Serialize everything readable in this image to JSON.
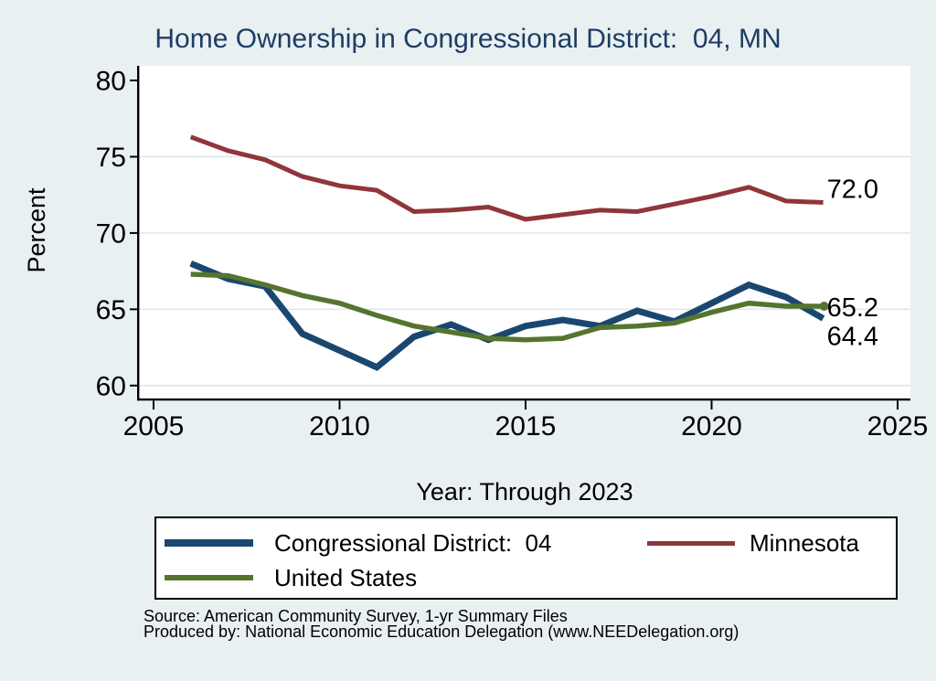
{
  "chart_data": {
    "type": "line",
    "title": "Home Ownership in Congressional District:  04, MN",
    "xlabel": "Year: Through 2023",
    "ylabel": "Percent",
    "x": [
      2006,
      2007,
      2008,
      2009,
      2010,
      2011,
      2012,
      2013,
      2014,
      2015,
      2016,
      2017,
      2018,
      2019,
      2020,
      2021,
      2022,
      2023
    ],
    "series": [
      {
        "name": "Congressional District:  04",
        "color": "#1a476f",
        "line_width": 7,
        "values": [
          68.0,
          67.0,
          66.5,
          63.4,
          62.3,
          61.2,
          63.2,
          64.0,
          63.0,
          63.9,
          64.3,
          63.9,
          64.9,
          64.2,
          65.4,
          66.6,
          65.8,
          64.4
        ]
      },
      {
        "name": "Minnesota",
        "color": "#90353b",
        "line_width": 5,
        "values": [
          76.3,
          75.4,
          74.8,
          73.7,
          73.1,
          72.8,
          71.4,
          71.5,
          71.7,
          70.9,
          71.2,
          71.5,
          71.4,
          71.9,
          72.4,
          73.0,
          72.1,
          72.0
        ]
      },
      {
        "name": "United States",
        "color": "#55752f",
        "line_width": 5.5,
        "end_dot": true,
        "values": [
          67.3,
          67.2,
          66.6,
          65.9,
          65.4,
          64.6,
          63.9,
          63.5,
          63.1,
          63.0,
          63.1,
          63.8,
          63.9,
          64.1,
          64.8,
          65.4,
          65.2,
          65.2
        ]
      }
    ],
    "xticks": [
      2005,
      2010,
      2015,
      2020,
      2025
    ],
    "yticks": [
      60,
      65,
      70,
      75,
      80
    ],
    "ygrid": [
      60,
      65,
      70,
      75
    ],
    "xlim": [
      2004.6,
      2025.35
    ],
    "ylim": [
      59.0,
      80.2
    ],
    "grid": "horizontal",
    "legend_position": "bottom",
    "annotations": [
      {
        "text": "72.0",
        "value": 72.0,
        "year": 2023,
        "dy": -5
      },
      {
        "text": "65.2",
        "value": 65.2,
        "year": 2023,
        "dy": 11
      },
      {
        "text": "64.4",
        "value": 64.4,
        "year": 2023,
        "dy": 29
      }
    ]
  },
  "source_note": {
    "line1": "Source: American Community Survey, 1-yr Summary Files",
    "line2": "Produced by: National Economic Education Delegation (www.NEEDelegation.org)"
  },
  "colors": {
    "background": "#e9f0f2",
    "plot_background": "#ffffff",
    "grid": "#dde9ed",
    "axis": "#000000",
    "title": "#1e3d63"
  }
}
